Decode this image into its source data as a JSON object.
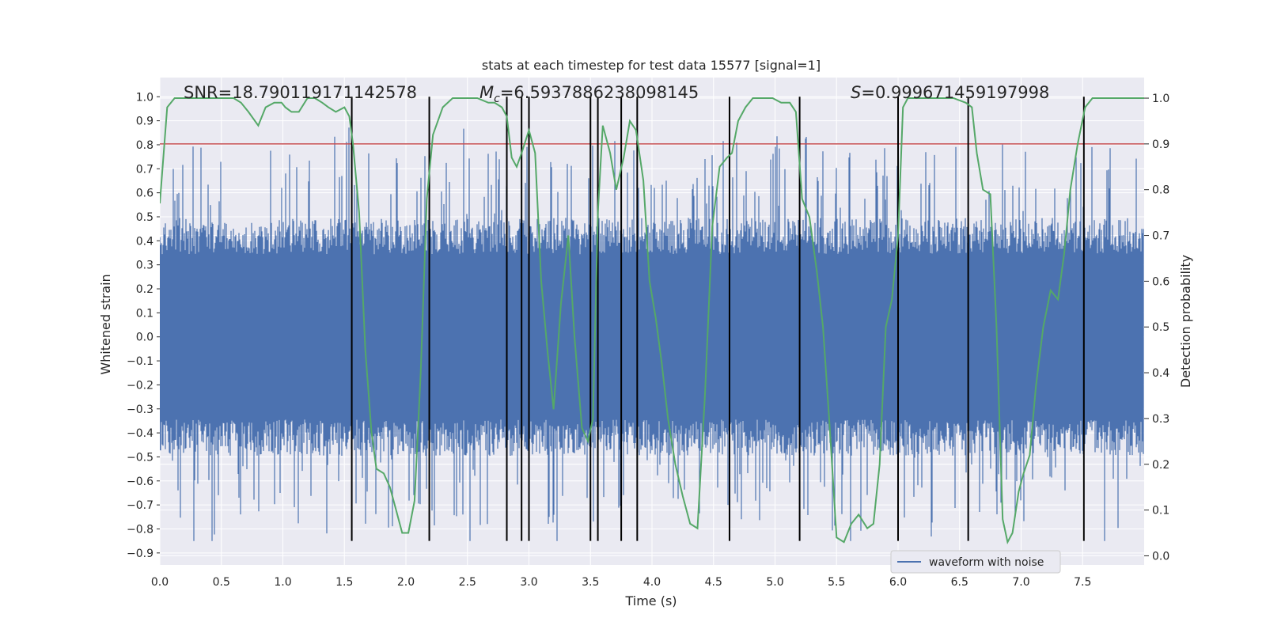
{
  "chart_data": {
    "type": "line",
    "title": "stats at each timestep for test data 15577 [signal=1]",
    "xlabel": "Time (s)",
    "ylabel": "Whitened strain",
    "y2label": "Detection probability",
    "xlim": [
      0.0,
      8.0
    ],
    "ylim": [
      -0.95,
      1.08
    ],
    "y2lim": [
      -0.02,
      1.045
    ],
    "x_ticks": [
      "0.0",
      "0.5",
      "1.0",
      "1.5",
      "2.0",
      "2.5",
      "3.0",
      "3.5",
      "4.0",
      "4.5",
      "5.0",
      "5.5",
      "6.0",
      "6.5",
      "7.0",
      "7.5"
    ],
    "y_ticks": [
      "1.0",
      "0.9",
      "0.8",
      "0.7",
      "0.6",
      "0.5",
      "0.4",
      "0.3",
      "0.2",
      "0.1",
      "0.0",
      "-0.1",
      "-0.2",
      "-0.3",
      "-0.4",
      "-0.5",
      "-0.6",
      "-0.7",
      "-0.8",
      "-0.9"
    ],
    "y2_ticks": [
      "1.0",
      "0.9",
      "0.8",
      "0.7",
      "0.6",
      "0.5",
      "0.4",
      "0.3",
      "0.2",
      "0.1",
      "0.0"
    ],
    "grid": true,
    "legend": {
      "placement": "bottom-center",
      "entries": [
        "waveform with noise"
      ]
    },
    "annotations": [
      {
        "prefix": "SNR",
        "text": "=18.790119171142578",
        "x": 0.2
      },
      {
        "prefix": "M",
        "sub": "c",
        "text": "=6.5937886238098145",
        "x": 2.6
      },
      {
        "prefix": "S",
        "text": "=0.999671459197998",
        "x": 5.6
      }
    ],
    "threshold": {
      "value": 0.9,
      "axis": "y2",
      "color": "#c44e52"
    },
    "colors": {
      "waveform": "#4c72b0",
      "probability": "#55a868",
      "event_lines": "#000000",
      "background": "#eaeaf2"
    },
    "waveform": {
      "sample_rate": 2048,
      "duration": 8.0,
      "typical_envelope": 0.42,
      "max": 1.0,
      "min": -0.85
    },
    "event_lines": [
      1.56,
      2.19,
      2.82,
      2.94,
      3.0,
      3.5,
      3.56,
      3.75,
      3.88,
      4.63,
      5.2,
      6.0,
      6.57,
      7.51
    ],
    "event_lines_yrange": [
      -0.85,
      1.0
    ],
    "series": [
      {
        "name": "detection probability",
        "axis": "y2",
        "x": [
          0.0,
          0.06,
          0.12,
          0.2,
          0.3,
          0.5,
          0.6,
          0.66,
          0.72,
          0.8,
          0.86,
          0.93,
          0.99,
          1.02,
          1.07,
          1.13,
          1.2,
          1.26,
          1.32,
          1.37,
          1.43,
          1.5,
          1.54,
          1.57,
          1.62,
          1.67,
          1.72,
          1.76,
          1.82,
          1.87,
          1.92,
          1.97,
          2.02,
          2.07,
          2.12,
          2.17,
          2.22,
          2.3,
          2.38,
          2.45,
          2.5,
          2.58,
          2.67,
          2.72,
          2.78,
          2.82,
          2.86,
          2.9,
          2.94,
          3.0,
          3.05,
          3.1,
          3.15,
          3.2,
          3.26,
          3.32,
          3.37,
          3.43,
          3.48,
          3.52,
          3.56,
          3.6,
          3.66,
          3.71,
          3.77,
          3.82,
          3.87,
          3.93,
          3.98,
          4.03,
          4.08,
          4.13,
          4.19,
          4.25,
          4.31,
          4.37,
          4.43,
          4.49,
          4.55,
          4.61,
          4.65,
          4.7,
          4.76,
          4.82,
          4.9,
          4.98,
          5.05,
          5.12,
          5.17,
          5.22,
          5.28,
          5.34,
          5.39,
          5.44,
          5.5,
          5.56,
          5.62,
          5.68,
          5.75,
          5.8,
          5.85,
          5.9,
          5.95,
          6.0,
          6.04,
          6.08,
          6.14,
          6.2,
          6.26,
          6.35,
          6.45,
          6.55,
          6.6,
          6.64,
          6.69,
          6.75,
          6.8,
          6.85,
          6.89,
          6.93,
          6.98,
          7.02,
          7.07,
          7.12,
          7.18,
          7.24,
          7.3,
          7.35,
          7.4,
          7.46,
          7.52,
          7.58,
          7.64,
          7.7,
          7.8,
          8.0
        ],
        "y": [
          0.77,
          0.98,
          1.0,
          1.0,
          1.0,
          1.0,
          1.0,
          0.99,
          0.97,
          0.94,
          0.98,
          0.99,
          0.99,
          0.98,
          0.97,
          0.97,
          1.0,
          1.0,
          0.99,
          0.98,
          0.97,
          0.98,
          0.96,
          0.9,
          0.75,
          0.45,
          0.27,
          0.19,
          0.18,
          0.15,
          0.1,
          0.05,
          0.05,
          0.12,
          0.4,
          0.78,
          0.92,
          0.98,
          1.0,
          1.0,
          1.0,
          1.0,
          0.99,
          0.99,
          0.98,
          0.96,
          0.87,
          0.85,
          0.88,
          0.93,
          0.88,
          0.6,
          0.45,
          0.32,
          0.55,
          0.7,
          0.48,
          0.28,
          0.25,
          0.3,
          0.75,
          0.94,
          0.88,
          0.8,
          0.87,
          0.95,
          0.93,
          0.82,
          0.6,
          0.52,
          0.42,
          0.3,
          0.2,
          0.13,
          0.07,
          0.06,
          0.35,
          0.72,
          0.85,
          0.87,
          0.88,
          0.95,
          0.98,
          1.0,
          1.0,
          1.0,
          0.99,
          0.99,
          0.97,
          0.78,
          0.74,
          0.62,
          0.5,
          0.3,
          0.04,
          0.03,
          0.07,
          0.09,
          0.06,
          0.07,
          0.2,
          0.5,
          0.56,
          0.7,
          0.98,
          1.0,
          1.0,
          1.0,
          1.0,
          1.0,
          1.0,
          0.99,
          0.98,
          0.88,
          0.8,
          0.79,
          0.5,
          0.08,
          0.03,
          0.05,
          0.14,
          0.18,
          0.22,
          0.37,
          0.5,
          0.58,
          0.56,
          0.66,
          0.8,
          0.9,
          0.98,
          1.0,
          1.0,
          1.0,
          1.0,
          1.0
        ]
      }
    ]
  }
}
